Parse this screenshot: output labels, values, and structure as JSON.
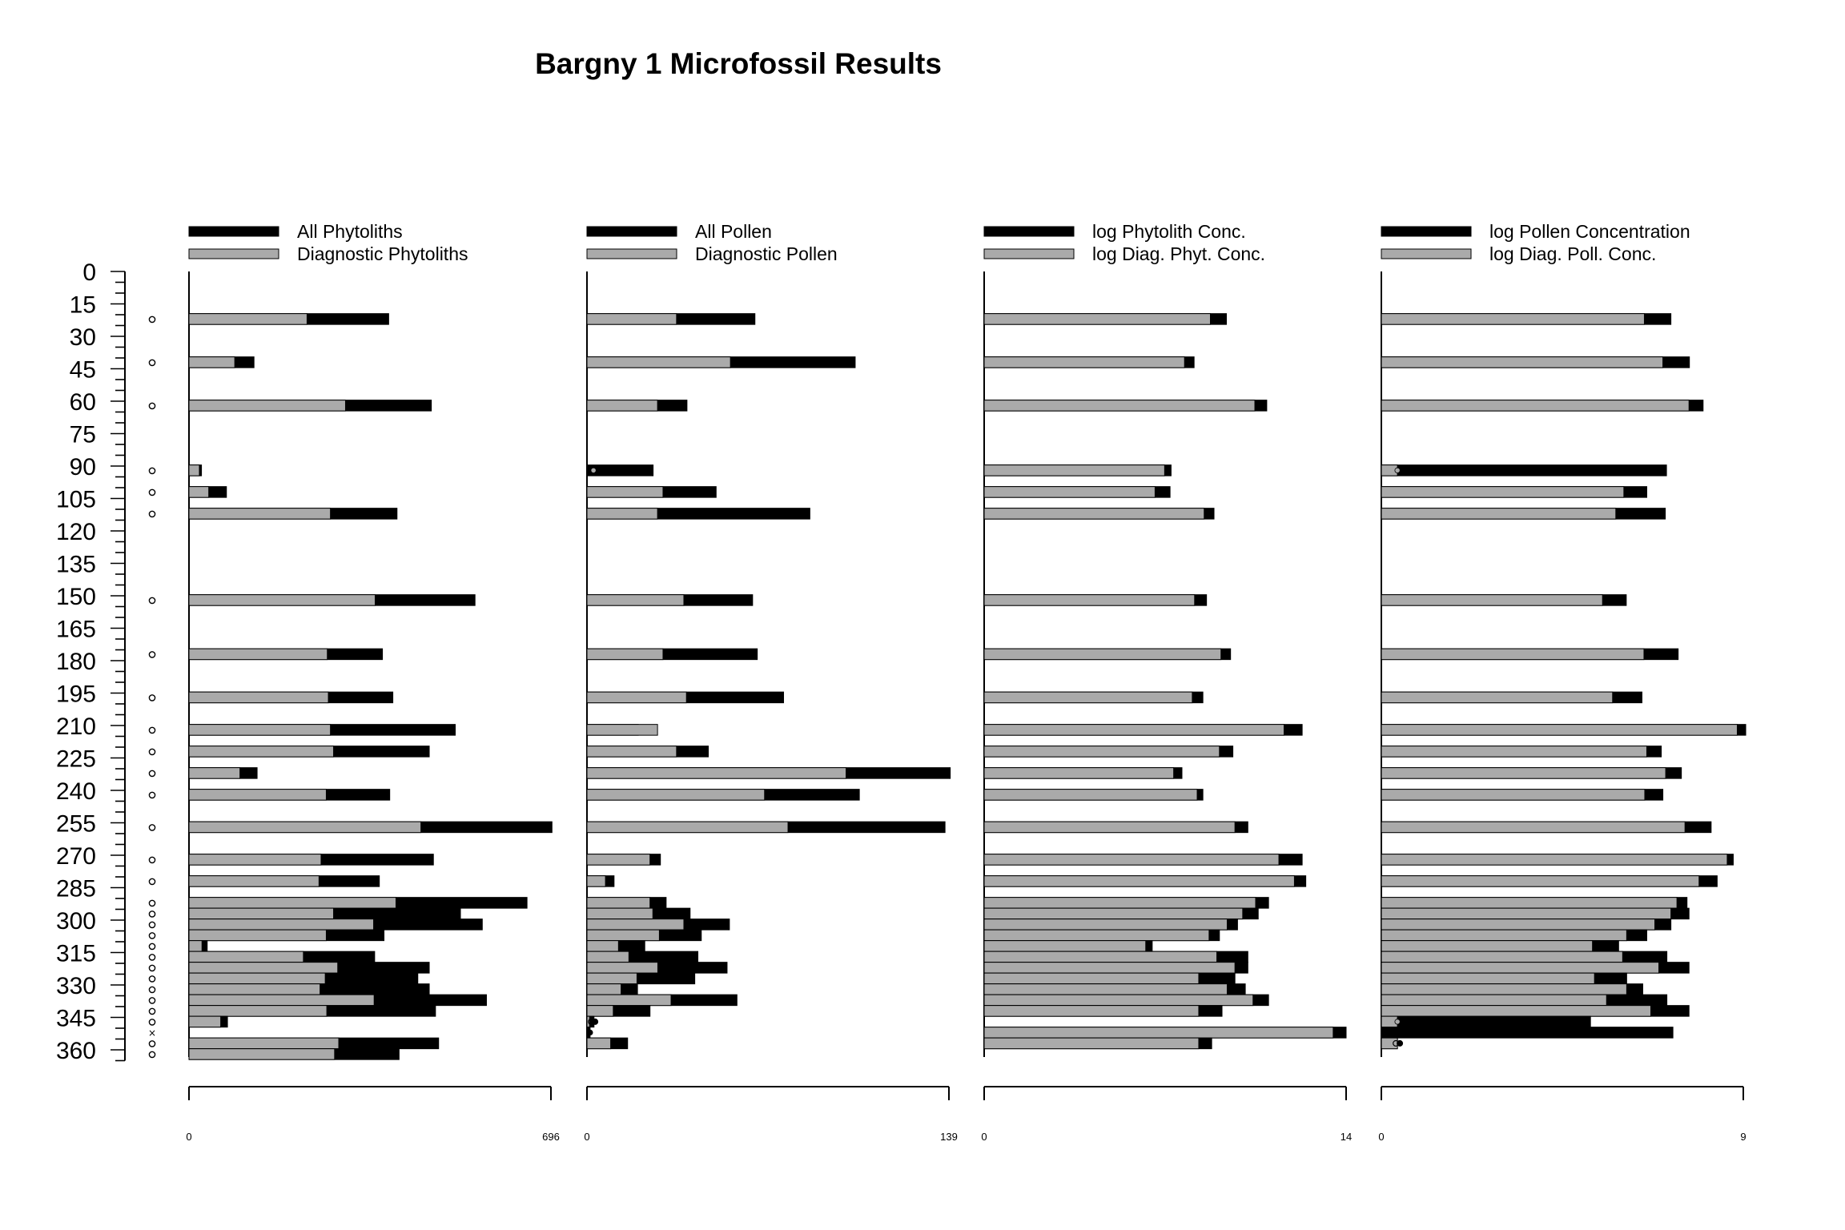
{
  "chart_data": {
    "type": "bar",
    "title": "Bargny 1 Microfossil Results",
    "colors": {
      "total": "#000000",
      "diagnostic": "#aaaaaa",
      "axis": "#000000"
    },
    "depth_axis": {
      "ticks": [
        0,
        15,
        30,
        45,
        60,
        75,
        90,
        105,
        120,
        135,
        150,
        165,
        180,
        195,
        210,
        225,
        240,
        255,
        270,
        285,
        300,
        315,
        330,
        345,
        360
      ],
      "minor_step": 5,
      "range": [
        0,
        365
      ]
    },
    "depths": [
      22,
      42,
      62,
      92,
      102,
      112,
      152,
      177,
      197,
      212,
      222,
      232,
      242,
      257,
      272,
      282,
      292,
      297,
      302,
      307,
      312,
      317,
      322,
      327,
      332,
      337,
      342,
      347,
      352,
      357,
      362
    ],
    "sample_markers": [
      "o",
      "o",
      "o",
      "o",
      "o",
      "o",
      "o",
      "o",
      "o",
      "o",
      "o",
      "o",
      "o",
      "o",
      "o",
      "o",
      "o",
      "o",
      "o",
      "o",
      "o",
      "o",
      "o",
      "o",
      "o",
      "o",
      "o",
      "o",
      "x",
      "o",
      "o"
    ],
    "panels": [
      {
        "legend_total": "All Phytoliths",
        "legend_diagnostic": "Diagnostic Phytoliths",
        "xlim": [
          0,
          696
        ],
        "tick_min_label": "0",
        "tick_max_label": "696",
        "series": [
          {
            "name": "All Phytoliths",
            "values": [
              384,
              125,
              466,
              24,
              72,
              400,
              550,
              372,
              392,
              512,
              462,
              131,
              386,
              698,
              470,
              366,
              650,
              522,
              564,
              375,
              35,
              357,
              462,
              440,
              462,
              572,
              474,
              74,
              0,
              480,
              404
            ]
          },
          {
            "name": "Diagnostic Phytoliths",
            "values": [
              227,
              88,
              301,
              20,
              38,
              272,
              358,
              266,
              268,
              272,
              278,
              98,
              264,
              446,
              254,
              250,
              398,
              278,
              355,
              264,
              25,
              220,
              286,
              262,
              252,
              356,
              265,
              61,
              0,
              288,
              280
            ]
          }
        ],
        "marks": [
          {
            "row": 3,
            "series": "diagnostic",
            "value": 24,
            "marker": "none"
          }
        ]
      },
      {
        "legend_total": "All Pollen",
        "legend_diagnostic": "Diagnostic Pollen",
        "xlim": [
          0,
          139
        ],
        "tick_min_label": "0",
        "tick_max_label": "139",
        "series": [
          {
            "name": "All Pollen",
            "values": [
              64.5,
              103,
              38.4,
              25.4,
              49.6,
              85.6,
              63.6,
              65.4,
              75.5,
              19.7,
              46.6,
              139.5,
              104.6,
              137.5,
              28.2,
              10.4,
              30.4,
              39.6,
              54.7,
              43.9,
              22.2,
              42.6,
              53.8,
              41.4,
              19.4,
              57.6,
              24.2,
              2.7,
              1.2,
              15.6,
              0
            ]
          },
          {
            "name": "Diagnostic Pollen",
            "values": [
              34.4,
              55.1,
              27.1,
              0,
              29.2,
              27.1,
              37.2,
              29.2,
              38.2,
              27.1,
              34.4,
              99.5,
              68.2,
              77.2,
              24.2,
              7.1,
              24.2,
              25.3,
              37.2,
              27.8,
              12.1,
              16.1,
              27.2,
              19.2,
              13.1,
              32.3,
              10.1,
              1.0,
              0,
              9.1,
              0
            ]
          }
        ],
        "marks": [
          {
            "row": 3,
            "series": "diagnostic",
            "value": 2.5,
            "marker": "dot"
          },
          {
            "row": 27,
            "series": "total",
            "value": 2.5,
            "marker": "double-dot"
          },
          {
            "row": 28,
            "series": "total",
            "value": 1.2,
            "marker": "dot"
          }
        ]
      },
      {
        "legend_total": "log Phytolith Conc.",
        "legend_diagnostic": "log Diag. Phyt. Conc.",
        "xlim": [
          0,
          14
        ],
        "tick_min_label": "0",
        "tick_max_label": "14",
        "series": [
          {
            "name": "log Phytolith Conc.",
            "values": [
              9.37,
              8.12,
              10.93,
              7.23,
              7.19,
              8.89,
              8.6,
              9.53,
              8.46,
              12.3,
              9.62,
              7.65,
              8.46,
              10.2,
              12.3,
              12.44,
              11.0,
              10.6,
              9.8,
              9.1,
              6.5,
              10.2,
              10.2,
              9.7,
              10.1,
              11.0,
              9.2,
              0,
              14.0,
              8.8,
              0
            ]
          },
          {
            "name": "log Diag. Phyt. Conc.",
            "values": [
              8.75,
              7.75,
              10.47,
              6.98,
              6.61,
              8.51,
              8.14,
              9.16,
              8.05,
              11.6,
              9.1,
              7.33,
              8.24,
              9.7,
              11.4,
              12.0,
              10.5,
              10.0,
              9.4,
              8.7,
              6.25,
              9.0,
              9.7,
              8.3,
              9.4,
              10.4,
              8.3,
              0,
              13.5,
              8.3,
              0
            ]
          }
        ],
        "marks": []
      },
      {
        "legend_total": "log Pollen Concentration",
        "legend_diagnostic": "log Diag. Poll. Conc.",
        "xlim": [
          0,
          9
        ],
        "tick_min_label": "0",
        "tick_max_label": "9",
        "series": [
          {
            "name": "log Pollen Concentration",
            "values": [
              7.2,
              7.66,
              8.0,
              7.09,
              6.6,
              7.06,
              6.09,
              7.38,
              6.48,
              9.06,
              6.96,
              7.46,
              7.0,
              8.2,
              8.75,
              8.35,
              7.6,
              7.65,
              7.2,
              6.6,
              5.9,
              7.1,
              7.65,
              6.1,
              6.5,
              7.1,
              7.65,
              5.2,
              7.25,
              0.4,
              0
            ]
          },
          {
            "name": "log Diag. Poll. Conc.",
            "values": [
              6.54,
              7.0,
              7.65,
              0.4,
              6.03,
              5.83,
              5.5,
              6.53,
              5.75,
              8.85,
              6.6,
              7.07,
              6.55,
              7.55,
              8.6,
              7.9,
              7.35,
              7.2,
              6.8,
              6.1,
              5.25,
              6.0,
              6.9,
              5.3,
              6.1,
              5.6,
              6.7,
              0.4,
              0,
              0.4,
              0
            ]
          }
        ],
        "marks": [
          {
            "row": 3,
            "series": "diagnostic",
            "value": 0.4,
            "marker": "dot"
          },
          {
            "row": 27,
            "series": "diagnostic",
            "value": 0.4,
            "marker": "dot"
          },
          {
            "row": 29,
            "series": "total",
            "value": 0.42,
            "marker": "double-dot"
          }
        ]
      }
    ]
  }
}
